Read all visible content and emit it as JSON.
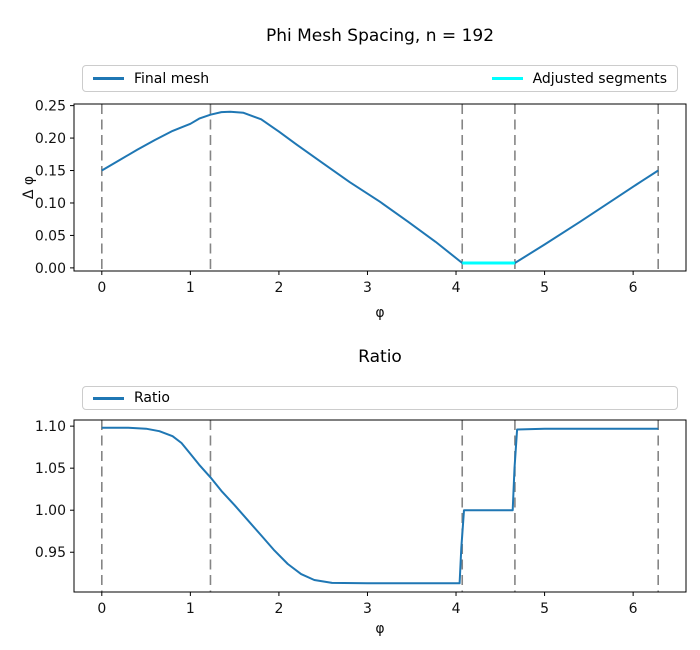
{
  "chart_data": [
    {
      "type": "line",
      "title": "Phi Mesh Spacing, n = 192",
      "xlabel": "φ",
      "ylabel": "Δ φ",
      "xlim": [
        -0.314,
        6.597
      ],
      "ylim": [
        -0.0048,
        0.2525
      ],
      "xticks": [
        0,
        1,
        2,
        3,
        4,
        5,
        6
      ],
      "xtick_labels": [
        "0",
        "1",
        "2",
        "3",
        "4",
        "5",
        "6"
      ],
      "yticks": [
        0.0,
        0.05,
        0.1,
        0.15,
        0.2,
        0.25
      ],
      "ytick_labels": [
        "0.00",
        "0.05",
        "0.10",
        "0.15",
        "0.20",
        "0.25"
      ],
      "grid": false,
      "legend": {
        "position": "above axes, full width, two columns",
        "entries": [
          {
            "label": "Final mesh",
            "color": "#1f77b4"
          },
          {
            "label": "Adjusted segments",
            "color": "#00ffff"
          }
        ]
      },
      "vlines": {
        "x": [
          0.0,
          1.227,
          4.07,
          4.665,
          6.283
        ],
        "color": "#858585",
        "style": "dashed"
      },
      "series": [
        {
          "name": "Final mesh",
          "color": "#1f77b4",
          "width": 2,
          "x": [
            0.0,
            0.2,
            0.4,
            0.6,
            0.8,
            1.0,
            1.1,
            1.227,
            1.35,
            1.45,
            1.6,
            1.8,
            2.0,
            2.2,
            2.5,
            2.8,
            3.14,
            3.46,
            3.77,
            4.07,
            4.3,
            4.665,
            5.0,
            5.4,
            5.8,
            6.1,
            6.283
          ],
          "y": [
            0.15,
            0.166,
            0.182,
            0.197,
            0.211,
            0.222,
            0.23,
            0.236,
            0.24,
            0.2405,
            0.239,
            0.229,
            0.21,
            0.19,
            0.161,
            0.132,
            0.102,
            0.071,
            0.04,
            0.0075,
            0.0075,
            0.0075,
            0.036,
            0.071,
            0.107,
            0.134,
            0.15
          ]
        },
        {
          "name": "Adjusted segments",
          "color": "#00ffff",
          "width": 3,
          "x": [
            4.07,
            4.665
          ],
          "y": [
            0.0075,
            0.0075
          ]
        }
      ]
    },
    {
      "type": "line",
      "title": "Ratio",
      "xlabel": "φ",
      "ylabel": "",
      "xlim": [
        -0.314,
        6.597
      ],
      "ylim": [
        0.9027,
        1.1073
      ],
      "xticks": [
        0,
        1,
        2,
        3,
        4,
        5,
        6
      ],
      "xtick_labels": [
        "0",
        "1",
        "2",
        "3",
        "4",
        "5",
        "6"
      ],
      "yticks": [
        0.95,
        1.0,
        1.05,
        1.1
      ],
      "ytick_labels": [
        "0.95",
        "1.00",
        "1.05",
        "1.10"
      ],
      "grid": false,
      "legend": {
        "position": "above axes, full width, one column",
        "entries": [
          {
            "label": "Ratio",
            "color": "#1f77b4"
          }
        ]
      },
      "vlines": {
        "x": [
          0.0,
          1.227,
          4.07,
          4.665,
          6.283
        ],
        "color": "#858585",
        "style": "dashed"
      },
      "series": [
        {
          "name": "Ratio",
          "color": "#1f77b4",
          "width": 2,
          "x": [
            0.0,
            0.3,
            0.5,
            0.65,
            0.8,
            0.9,
            1.0,
            1.1,
            1.227,
            1.35,
            1.5,
            1.65,
            1.8,
            1.95,
            2.1,
            2.25,
            2.4,
            2.6,
            3.0,
            3.6,
            4.0,
            4.04,
            4.06,
            4.09,
            4.3,
            4.6,
            4.64,
            4.66,
            4.69,
            5.0,
            5.5,
            6.0,
            6.283
          ],
          "y": [
            1.098,
            1.098,
            1.097,
            1.094,
            1.088,
            1.08,
            1.067,
            1.054,
            1.039,
            1.023,
            1.006,
            0.988,
            0.97,
            0.952,
            0.936,
            0.924,
            0.917,
            0.9135,
            0.913,
            0.913,
            0.913,
            0.913,
            0.955,
            1.0,
            1.0,
            1.0,
            1.0,
            1.05,
            1.096,
            1.097,
            1.097,
            1.097,
            1.097
          ]
        }
      ]
    }
  ]
}
